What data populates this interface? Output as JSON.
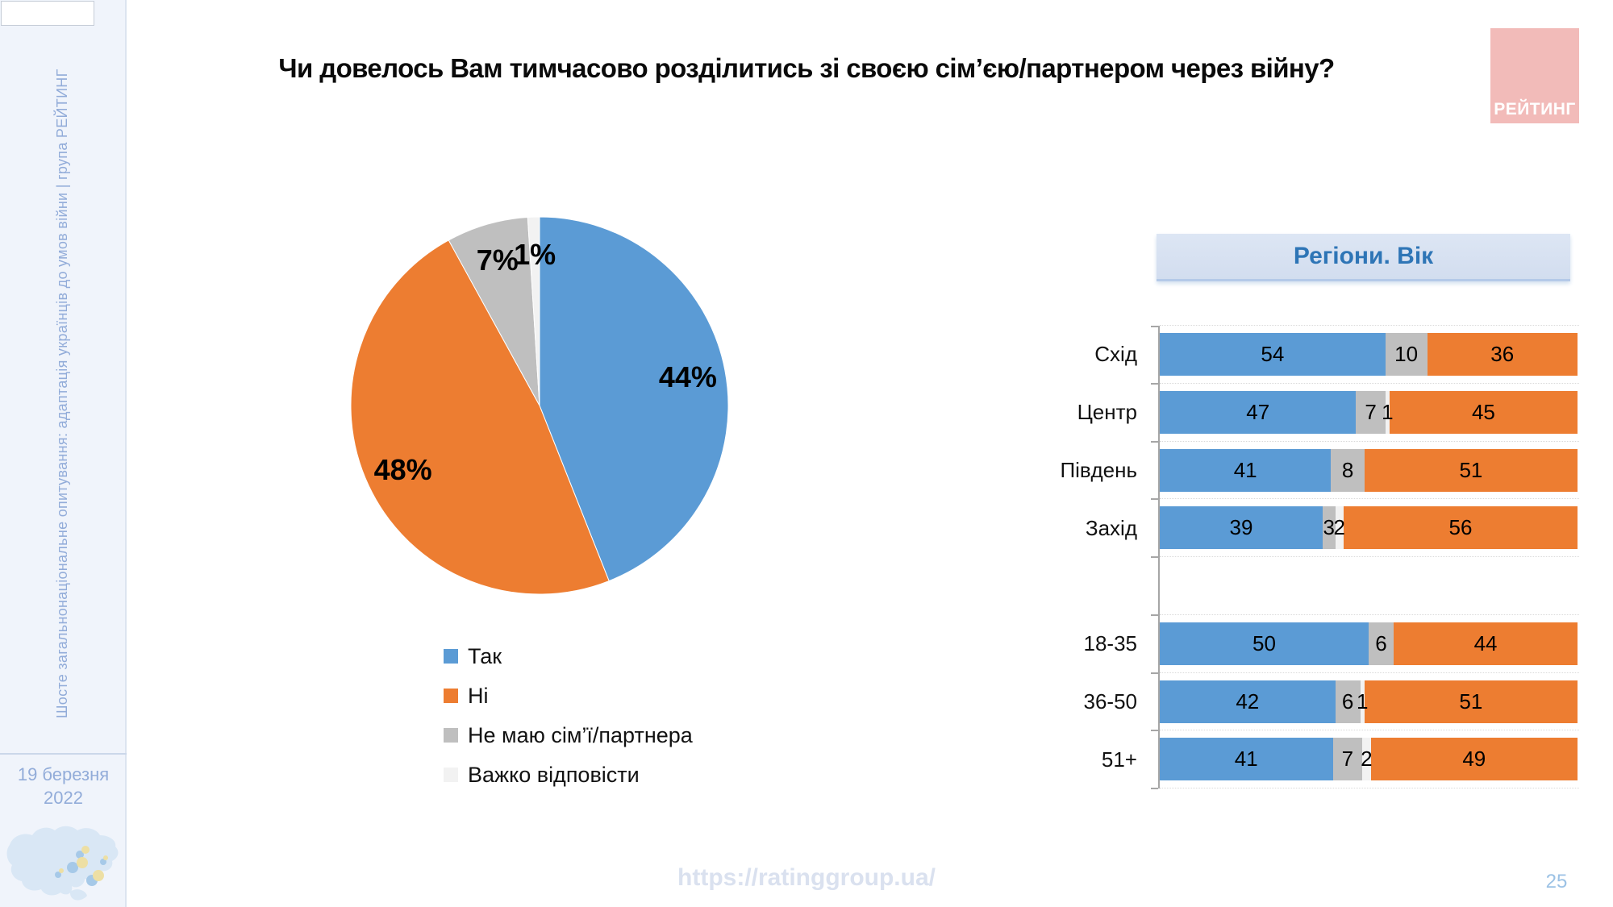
{
  "slide": {
    "title": "Чи довелось Вам тимчасово розділитись зі своєю сім’єю/партнером через війну?"
  },
  "sidebar": {
    "vertical_text": "Шосте загальнонаціональне опитування: адаптація українців до умов війни | група РЕЙТИНГ",
    "date_line1": "19 березня",
    "date_line2": "2022"
  },
  "logo": {
    "label": "РЕЙТИНГ",
    "background": "#F2BBB9"
  },
  "panel": {
    "header_note": "header text bound from chart_data.1.title"
  },
  "footer": {
    "url": "https://ratinggroup.ua/",
    "page": "25"
  },
  "theme": {
    "sidebar_bg": "#F0F4FB",
    "sidebar_text": "#92ACD9",
    "axis_color": "#A6A6A6",
    "grid_color": "#D9D9D9",
    "panel_text": "#2E75B6",
    "url_color": "#DAE1EF",
    "page_color": "#9CC2E5"
  },
  "chart_data": [
    {
      "type": "pie",
      "labels": [
        "Так",
        "Ні",
        "Не маю сім’ї/партнера",
        "Важко відповісти"
      ],
      "values": [
        44,
        48,
        7,
        1
      ],
      "display_labels": [
        "44%",
        "48%",
        "7%",
        "1%"
      ],
      "colors": [
        "#5B9BD5",
        "#ED7D31",
        "#BFBFBF",
        "#F2F2F2"
      ],
      "keys": [
        "yes",
        "no",
        "no-family",
        "hard-to-say"
      ],
      "start_angle_deg": 0,
      "direction": "clockwise",
      "legend_position": "bottom-left"
    },
    {
      "type": "bar",
      "stacked": true,
      "normalized_100": true,
      "orientation": "horizontal",
      "title": "Регіони. Вік",
      "categories": [
        "Схід",
        "Центр",
        "Південь",
        "Захід",
        "18-35",
        "36-50",
        "51+"
      ],
      "group_gap_after_index": 3,
      "xlim": [
        0,
        100
      ],
      "series": [
        {
          "name": "Так",
          "key": "yes",
          "color": "#5B9BD5",
          "values": [
            54,
            47,
            41,
            39,
            50,
            42,
            41
          ]
        },
        {
          "name": "Не маю сім’ї/партнера",
          "key": "no-family",
          "color": "#BFBFBF",
          "values": [
            10,
            7,
            8,
            3,
            6,
            6,
            7
          ]
        },
        {
          "name": "Важко відповісти",
          "key": "hard-to-say",
          "color": "#F2F2F2",
          "values": [
            0,
            1,
            0,
            2,
            0,
            1,
            2
          ]
        },
        {
          "name": "Ні",
          "key": "no",
          "color": "#ED7D31",
          "values": [
            36,
            45,
            51,
            56,
            44,
            51,
            49
          ]
        }
      ]
    }
  ]
}
